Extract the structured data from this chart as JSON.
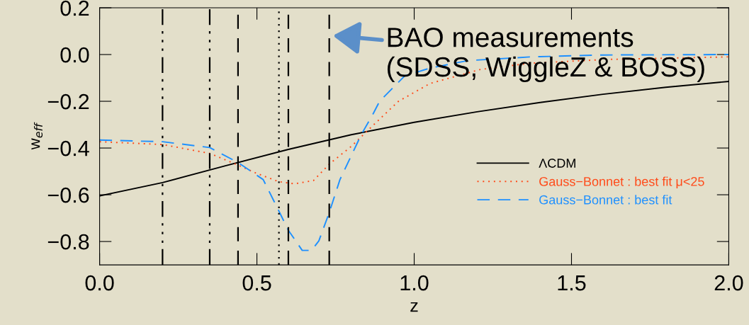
{
  "chart_data": {
    "type": "line",
    "xlabel": "z",
    "ylabel": "w$_{eff}$",
    "xlim": [
      0.0,
      2.0
    ],
    "xticks": [
      {
        "value": 0.0,
        "label": "0.0"
      },
      {
        "value": 0.5,
        "label": "0.5"
      },
      {
        "value": 1.0,
        "label": "1.0"
      },
      {
        "value": 1.5,
        "label": "1.5"
      },
      {
        "value": 2.0,
        "label": "2.0"
      }
    ],
    "ylim": [
      -0.9,
      0.2
    ],
    "yticks": [
      {
        "value": -0.8,
        "label": "−0.8"
      },
      {
        "value": -0.6,
        "label": "−0.6"
      },
      {
        "value": -0.4,
        "label": "−0.4"
      },
      {
        "value": -0.2,
        "label": "−0.2"
      },
      {
        "value": 0.0,
        "label": "0.0"
      },
      {
        "value": 0.2,
        "label": "0.2"
      }
    ],
    "grid": false,
    "legend": "right",
    "marker": "none",
    "series": [
      {
        "name": "ΛCDM",
        "color": "#000000",
        "line_style": "solid",
        "x": [
          0,
          0.2,
          0.4,
          0.6,
          0.8,
          1.0,
          1.2,
          1.4,
          1.6,
          1.8,
          2.0
        ],
        "values": [
          -0.605,
          -0.548,
          -0.476,
          -0.406,
          -0.343,
          -0.29,
          -0.245,
          -0.205,
          -0.17,
          -0.14,
          -0.115
        ]
      },
      {
        "name": "Gauss−Bonnet : best fit μ<25",
        "color": "#ff4b1a",
        "line_style": "dotted",
        "x": [
          0,
          0.2,
          0.35,
          0.44,
          0.5,
          0.57,
          0.62,
          0.68,
          0.73,
          0.8,
          0.87,
          0.95,
          1.05,
          1.21,
          1.37,
          1.61,
          2.0
        ],
        "values": [
          -0.373,
          -0.385,
          -0.423,
          -0.473,
          -0.509,
          -0.544,
          -0.553,
          -0.539,
          -0.469,
          -0.393,
          -0.302,
          -0.2,
          -0.124,
          -0.064,
          -0.037,
          -0.021,
          -0.01
        ]
      },
      {
        "name": "Gauss−Bonnet : best fit",
        "color": "#1e90ff",
        "line_style": "dashed",
        "x": [
          0,
          0.2,
          0.35,
          0.44,
          0.52,
          0.57,
          0.6,
          0.644,
          0.674,
          0.697,
          0.73,
          0.764,
          0.832,
          0.87,
          0.89,
          0.97,
          1.05,
          1.17,
          1.37,
          1.6,
          2.0
        ],
        "values": [
          -0.366,
          -0.373,
          -0.398,
          -0.462,
          -0.535,
          -0.67,
          -0.752,
          -0.838,
          -0.838,
          -0.797,
          -0.676,
          -0.535,
          -0.342,
          -0.252,
          -0.2,
          -0.091,
          -0.058,
          -0.026,
          -0.01,
          -0.002,
          0.0
        ]
      }
    ],
    "ref_lines": [
      {
        "axis": "x",
        "value": 0.2,
        "color": "#000000",
        "line_style": "dashdot"
      },
      {
        "axis": "x",
        "value": 0.35,
        "color": "#000000",
        "line_style": "dashdot"
      },
      {
        "axis": "x",
        "value": 0.44,
        "color": "#000000",
        "line_style": "dashed"
      },
      {
        "axis": "x",
        "value": 0.57,
        "color": "#000000",
        "line_style": "dotted"
      },
      {
        "axis": "x",
        "value": 0.6,
        "color": "#000000",
        "line_style": "dashed"
      },
      {
        "axis": "x",
        "value": 0.73,
        "color": "#000000",
        "line_style": "dashed"
      }
    ],
    "annotations": [
      {
        "text": "BAO measurements\n(SDSS, WiggleZ & BOSS)",
        "x": 0.735,
        "y": 0.082
      }
    ]
  }
}
